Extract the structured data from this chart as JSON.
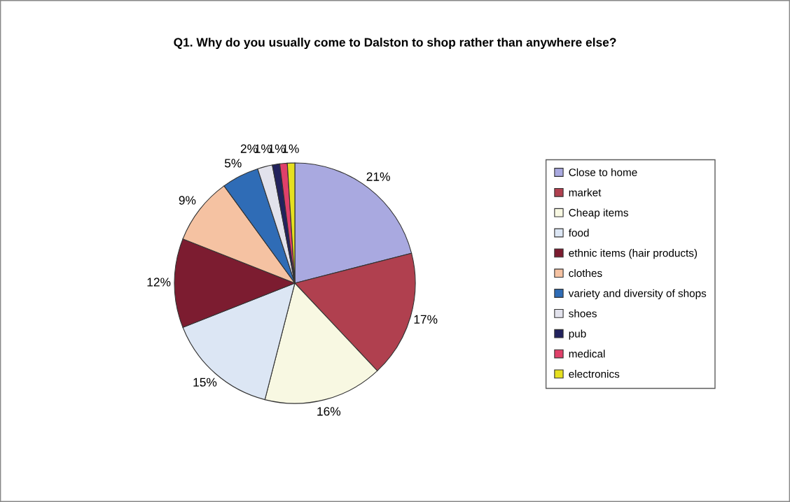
{
  "chart_data": {
    "type": "pie",
    "title": "Q1. Why do you usually come to Dalston to shop rather than anywhere else?",
    "categories": [
      "Close to home",
      "market",
      "Cheap items",
      "food",
      "ethnic items (hair products)",
      "clothes",
      "variety and diversity of shops",
      "shoes",
      "pub",
      "medical",
      "electronics"
    ],
    "values": [
      21,
      17,
      16,
      15,
      12,
      9,
      5,
      2,
      1,
      1,
      1
    ],
    "colors": [
      "#a9a9e0",
      "#b0404f",
      "#f8f8e2",
      "#dce6f4",
      "#7c1c30",
      "#f5c2a2",
      "#2f6cb6",
      "#e2e2ec",
      "#22225e",
      "#e0406a",
      "#e6e020"
    ],
    "value_labels": [
      "21%",
      "17%",
      "16%",
      "15%",
      "12%",
      "9%",
      "5%",
      "2%",
      "1%",
      "1%",
      "1%"
    ],
    "legend": "right"
  }
}
